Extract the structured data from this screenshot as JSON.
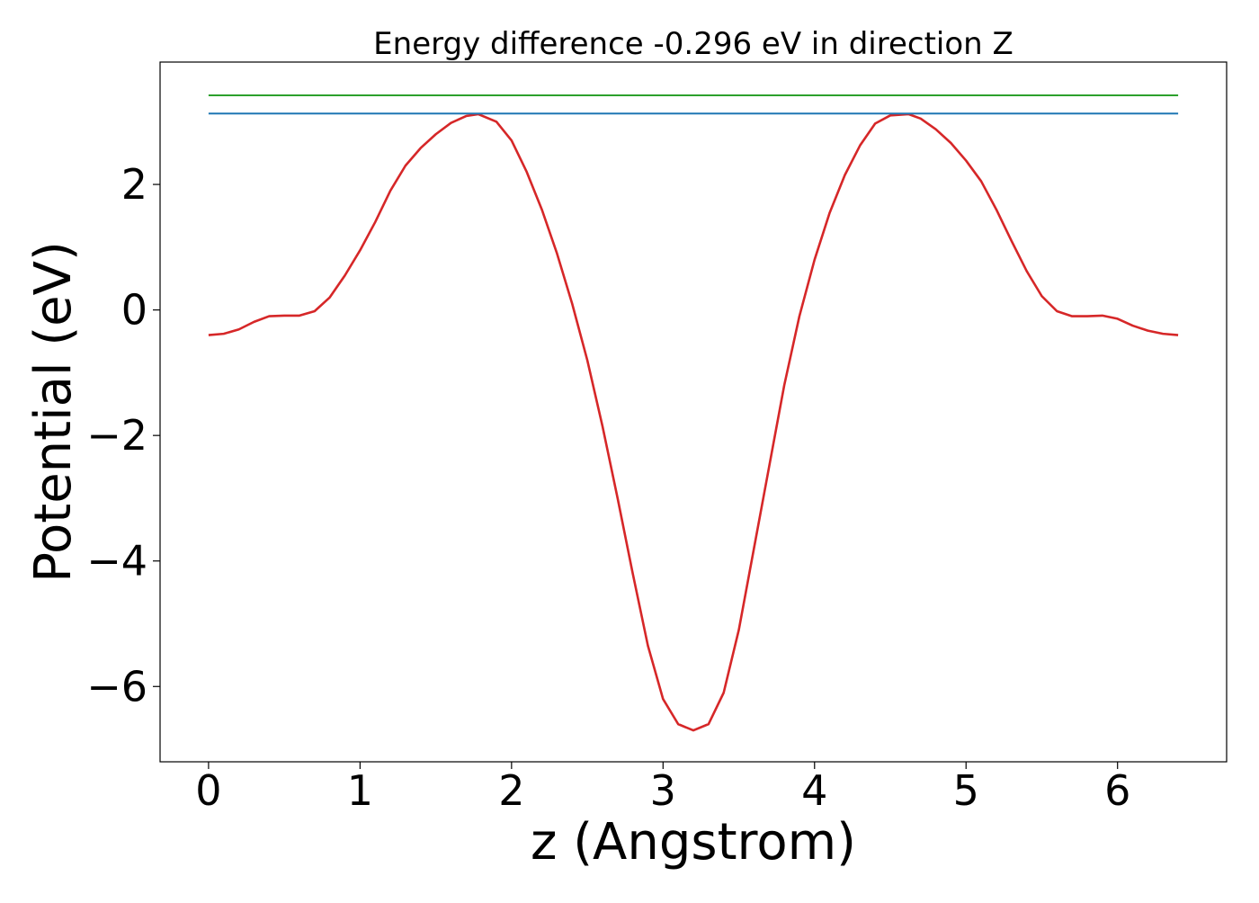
{
  "chart_data": {
    "type": "line",
    "title": "Energy difference -0.296 eV in direction Z",
    "xlabel": "z (Angstrom)",
    "ylabel": "Potential (eV)",
    "xlim": [
      -0.32,
      6.72
    ],
    "ylim": [
      -7.2,
      3.95
    ],
    "xticks": [
      0,
      1,
      2,
      3,
      4,
      5,
      6
    ],
    "yticks": [
      -6,
      -4,
      -2,
      0,
      2
    ],
    "xtick_labels": [
      "0",
      "1",
      "2",
      "3",
      "4",
      "5",
      "6"
    ],
    "ytick_labels": [
      "−6",
      "−4",
      "−2",
      "0",
      "2"
    ],
    "grid": false,
    "series": [
      {
        "color": "#d62728",
        "x": [
          0.0,
          0.1,
          0.2,
          0.3,
          0.4,
          0.5,
          0.6,
          0.7,
          0.8,
          0.9,
          1.0,
          1.1,
          1.2,
          1.3,
          1.4,
          1.5,
          1.6,
          1.7,
          1.78,
          1.9,
          2.0,
          2.1,
          2.2,
          2.3,
          2.4,
          2.5,
          2.6,
          2.7,
          2.8,
          2.9,
          3.0,
          3.1,
          3.2,
          3.3,
          3.4,
          3.5,
          3.6,
          3.7,
          3.8,
          3.9,
          4.0,
          4.1,
          4.2,
          4.3,
          4.4,
          4.5,
          4.62,
          4.7,
          4.8,
          4.9,
          5.0,
          5.1,
          5.2,
          5.3,
          5.4,
          5.5,
          5.6,
          5.7,
          5.8,
          5.9,
          6.0,
          6.1,
          6.2,
          6.3,
          6.4
        ],
        "y": [
          -0.4,
          -0.38,
          -0.31,
          -0.19,
          -0.1,
          -0.09,
          -0.09,
          -0.02,
          0.2,
          0.55,
          0.95,
          1.4,
          1.9,
          2.3,
          2.58,
          2.8,
          2.98,
          3.09,
          3.12,
          3.0,
          2.7,
          2.2,
          1.6,
          0.9,
          0.1,
          -0.8,
          -1.85,
          -3.0,
          -4.2,
          -5.35,
          -6.2,
          -6.6,
          -6.7,
          -6.6,
          -6.1,
          -5.1,
          -3.8,
          -2.5,
          -1.2,
          -0.1,
          0.8,
          1.55,
          2.15,
          2.62,
          2.97,
          3.1,
          3.12,
          3.05,
          2.88,
          2.66,
          2.38,
          2.05,
          1.6,
          1.1,
          0.62,
          0.22,
          -0.02,
          -0.1,
          -0.1,
          -0.09,
          -0.14,
          -0.25,
          -0.33,
          -0.38,
          -0.4
        ]
      },
      {
        "color": "#1f77b4",
        "x": [
          0.0,
          6.4
        ],
        "y": [
          3.13,
          3.13
        ]
      },
      {
        "color": "#2ca02c",
        "x": [
          0.0,
          6.4
        ],
        "y": [
          3.42,
          3.42
        ]
      }
    ]
  }
}
